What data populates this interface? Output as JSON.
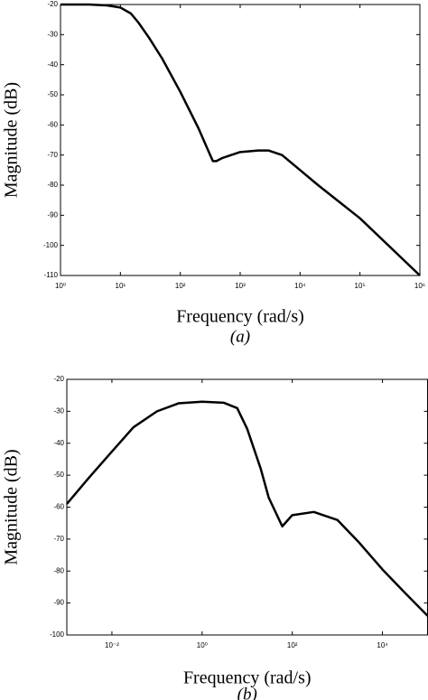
{
  "chart_data": [
    {
      "type": "line",
      "caption": "(a)",
      "x_label": "Frequency (rad/s)",
      "y_label": "Magnitude (dB)",
      "xscale": "log",
      "xlim": [
        1,
        1000000
      ],
      "ylim": [
        -110,
        -20
      ],
      "xticks": [
        {
          "value": 1,
          "label": "10⁰"
        },
        {
          "value": 10,
          "label": "10¹"
        },
        {
          "value": 100,
          "label": "10²"
        },
        {
          "value": 1000,
          "label": "10³"
        },
        {
          "value": 10000,
          "label": "10⁴"
        },
        {
          "value": 100000,
          "label": "10⁵"
        },
        {
          "value": 1000000,
          "label": "10⁶"
        }
      ],
      "yticks": [
        -20,
        -30,
        -40,
        -50,
        -60,
        -70,
        -80,
        -90,
        -100,
        -110
      ],
      "x": [
        1,
        3,
        6,
        10,
        15,
        20,
        30,
        50,
        100,
        200,
        300,
        350,
        400,
        500,
        1000,
        2000,
        3000,
        5000,
        10000,
        20000,
        100000,
        1000000
      ],
      "series": [
        {
          "color": "#000000",
          "values": [
            -20,
            -20,
            -20.3,
            -21,
            -23,
            -26,
            -31,
            -38,
            -49,
            -61,
            -69,
            -72,
            -72,
            -71,
            -69,
            -68.5,
            -68.5,
            -70,
            -75,
            -80,
            -91,
            -110
          ]
        }
      ]
    },
    {
      "type": "line",
      "caption": "(b)",
      "x_label": "Frequency (rad/s)",
      "y_label": "Magnitude (dB)",
      "xscale": "log",
      "xlim": [
        0.001,
        100000
      ],
      "ylim": [
        -100,
        -20
      ],
      "xticks": [
        {
          "value": 0.01,
          "label": "10⁻²"
        },
        {
          "value": 1,
          "label": "10⁰"
        },
        {
          "value": 100,
          "label": "10²"
        },
        {
          "value": 10000,
          "label": "10⁴"
        }
      ],
      "yticks": [
        -20,
        -30,
        -40,
        -50,
        -60,
        -70,
        -80,
        -90,
        -100
      ],
      "x": [
        0.001,
        0.003,
        0.01,
        0.03,
        0.1,
        0.3,
        1,
        3,
        6,
        10,
        20,
        30,
        60,
        100,
        300,
        1000,
        3000,
        10000,
        30000,
        100000
      ],
      "series": [
        {
          "color": "#000000",
          "values": [
            -59,
            -51,
            -42.6,
            -35,
            -30,
            -27.5,
            -27,
            -27.3,
            -29,
            -35.5,
            -48,
            -57,
            -66,
            -62.5,
            -61.5,
            -64,
            -71,
            -79.5,
            -86.5,
            -94
          ]
        }
      ]
    }
  ]
}
